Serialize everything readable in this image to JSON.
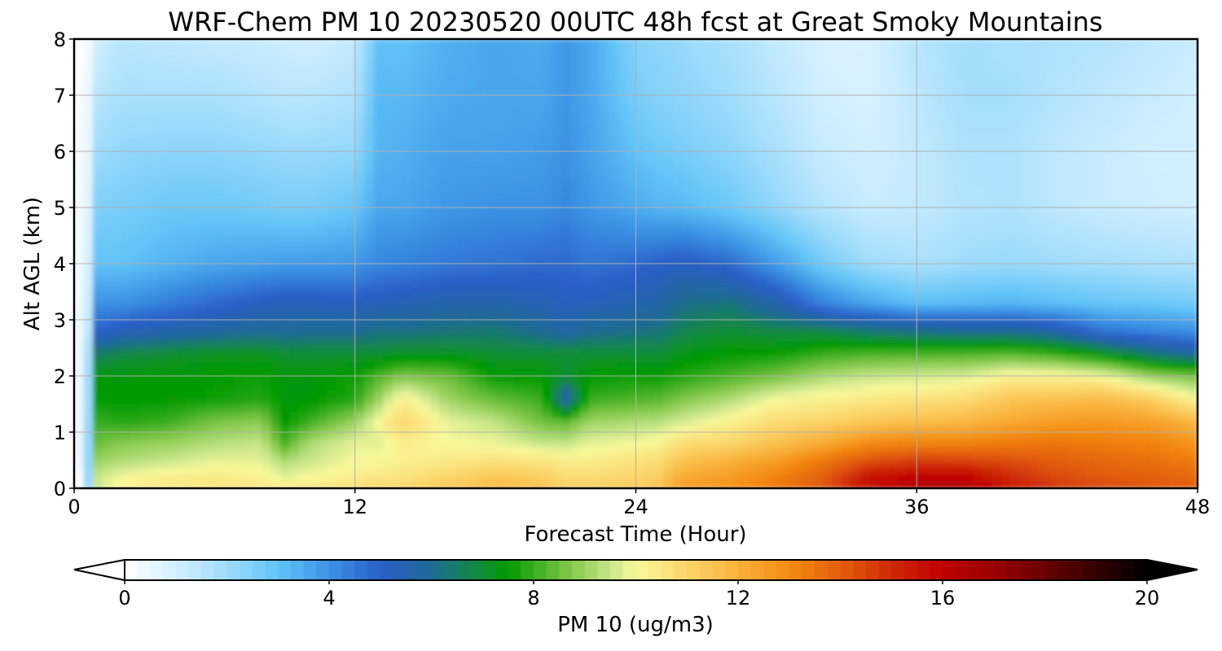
{
  "chart_data": {
    "type": "heatmap",
    "title": "WRF-Chem PM 10  20230520 00UTC 48h fcst at Great Smoky Mountains",
    "xlabel": "Forecast Time (Hour)",
    "ylabel": "Alt AGL (km)",
    "xlim": [
      0,
      48
    ],
    "ylim": [
      0,
      8
    ],
    "x_ticks": [
      "0",
      "12",
      "24",
      "36",
      "48"
    ],
    "y_ticks": [
      "0",
      "1",
      "2",
      "3",
      "4",
      "5",
      "6",
      "7",
      "8"
    ],
    "grid": true,
    "colorbar": {
      "label": "PM 10  (ug/m3)",
      "range": [
        0,
        20
      ],
      "ticks": [
        "0",
        "4",
        "8",
        "12",
        "16",
        "20"
      ],
      "extend": "both",
      "stops": [
        {
          "value": 0,
          "color": "#ffffff"
        },
        {
          "value": 1,
          "color": "#d2efff"
        },
        {
          "value": 2,
          "color": "#9fdcfb"
        },
        {
          "value": 3,
          "color": "#60c3f7"
        },
        {
          "value": 4,
          "color": "#3b92e4"
        },
        {
          "value": 5,
          "color": "#2a5fc8"
        },
        {
          "value": 6,
          "color": "#1f6a96"
        },
        {
          "value": 7,
          "color": "#108f35"
        },
        {
          "value": 7.5,
          "color": "#009a00"
        },
        {
          "value": 8.5,
          "color": "#6fbf3a"
        },
        {
          "value": 9.5,
          "color": "#c8e689"
        },
        {
          "value": 10,
          "color": "#f8f89a"
        },
        {
          "value": 11,
          "color": "#fbd56a"
        },
        {
          "value": 12,
          "color": "#f9b13a"
        },
        {
          "value": 13,
          "color": "#f38a12"
        },
        {
          "value": 14,
          "color": "#e35f0a"
        },
        {
          "value": 15,
          "color": "#cf2807"
        },
        {
          "value": 16,
          "color": "#c00000"
        },
        {
          "value": 17,
          "color": "#9a0000"
        },
        {
          "value": 18,
          "color": "#6a0000"
        },
        {
          "value": 19,
          "color": "#330000"
        },
        {
          "value": 20,
          "color": "#000000"
        }
      ]
    },
    "grid_time_hours": [
      0,
      0.5,
      1,
      2,
      4,
      6,
      8,
      9,
      10,
      12,
      13,
      14,
      16,
      18,
      20,
      21,
      22,
      24,
      25,
      26,
      28,
      30,
      32,
      34,
      36,
      38,
      40,
      42,
      44,
      46,
      48
    ],
    "grid_altitude_km": [
      0,
      0.2,
      0.5,
      0.8,
      1.2,
      1.6,
      2.0,
      2.4,
      2.8,
      3.3,
      4.0,
      5.0,
      6.0,
      7.0,
      8.0
    ],
    "values": [
      [
        0.0,
        0.0,
        0.5,
        0.5,
        0.3,
        0.3,
        0.3,
        0.3,
        0.3,
        0.3,
        0.2,
        0.2,
        0.2,
        0.1,
        0.0
      ],
      [
        0.3,
        0.3,
        0.5,
        0.6,
        0.6,
        0.6,
        0.6,
        0.6,
        0.5,
        0.5,
        0.4,
        0.3,
        0.2,
        0.2,
        0.1
      ],
      [
        9.5,
        9.5,
        9.0,
        8.5,
        8.0,
        7.5,
        7.5,
        6.5,
        5.0,
        4.0,
        3.0,
        2.5,
        2.0,
        1.5,
        1.0
      ],
      [
        10.2,
        10.0,
        9.2,
        8.8,
        7.8,
        7.5,
        7.4,
        6.8,
        5.3,
        4.0,
        3.0,
        2.6,
        2.2,
        1.8,
        1.5
      ],
      [
        10.5,
        10.3,
        9.5,
        9.0,
        8.0,
        7.5,
        7.5,
        7.0,
        5.6,
        4.4,
        3.3,
        2.8,
        2.3,
        1.8,
        1.4
      ],
      [
        10.6,
        10.4,
        9.8,
        9.3,
        8.6,
        7.6,
        7.5,
        7.2,
        5.8,
        4.8,
        3.6,
        2.8,
        2.3,
        1.8,
        1.3
      ],
      [
        10.5,
        10.2,
        9.8,
        9.5,
        8.8,
        7.8,
        7.6,
        7.2,
        6.0,
        5.2,
        3.7,
        2.7,
        2.2,
        1.6,
        1.2
      ],
      [
        10.4,
        9.8,
        9.2,
        8.2,
        7.5,
        7.4,
        7.4,
        7.0,
        5.9,
        5.3,
        3.8,
        2.6,
        2.1,
        1.5,
        1.1
      ],
      [
        10.6,
        10.0,
        9.5,
        9.2,
        8.0,
        7.4,
        7.4,
        7.0,
        6.0,
        5.3,
        3.8,
        2.6,
        2.1,
        1.5,
        1.0
      ],
      [
        10.8,
        10.3,
        10.0,
        9.8,
        9.0,
        7.8,
        7.6,
        7.0,
        6.0,
        5.2,
        3.9,
        2.9,
        2.2,
        1.7,
        1.3
      ],
      [
        11.0,
        10.5,
        10.0,
        9.8,
        10.0,
        9.0,
        8.2,
        7.0,
        6.2,
        5.3,
        4.2,
        3.6,
        3.3,
        3.2,
        3.0
      ],
      [
        11.0,
        10.6,
        10.2,
        10.3,
        11.0,
        10.3,
        8.7,
        7.2,
        6.2,
        5.4,
        4.3,
        3.6,
        3.4,
        3.2,
        3.0
      ],
      [
        11.4,
        11.0,
        10.4,
        10.0,
        9.8,
        9.0,
        8.5,
        7.2,
        6.3,
        5.6,
        4.5,
        3.9,
        3.7,
        3.5,
        3.4
      ],
      [
        11.8,
        11.4,
        10.6,
        9.9,
        9.4,
        8.4,
        7.5,
        7.0,
        6.4,
        5.6,
        4.6,
        4.0,
        3.7,
        3.6,
        3.6
      ],
      [
        11.6,
        11.2,
        10.5,
        9.5,
        8.5,
        8.0,
        7.5,
        7.0,
        6.0,
        5.4,
        4.8,
        4.0,
        3.8,
        3.6,
        3.5
      ],
      [
        11.2,
        10.8,
        10.3,
        9.5,
        8.3,
        5.5,
        7.0,
        7.0,
        5.7,
        5.2,
        4.8,
        4.2,
        4.0,
        3.9,
        3.9
      ],
      [
        11.2,
        10.8,
        10.3,
        9.8,
        9.0,
        8.0,
        7.5,
        7.0,
        6.0,
        5.3,
        4.6,
        3.9,
        3.7,
        3.6,
        3.6
      ],
      [
        11.3,
        11.0,
        10.6,
        10.0,
        9.2,
        8.2,
        7.6,
        7.0,
        6.2,
        5.5,
        4.8,
        3.5,
        3.0,
        2.6,
        2.4
      ],
      [
        11.6,
        11.2,
        10.8,
        10.2,
        9.3,
        8.3,
        7.6,
        7.0,
        6.3,
        5.7,
        5.0,
        3.3,
        2.8,
        2.4,
        2.3
      ],
      [
        12.6,
        12.2,
        11.5,
        10.8,
        9.6,
        8.7,
        7.8,
        7.3,
        6.7,
        6.1,
        5.2,
        3.2,
        2.6,
        2.3,
        2.1
      ],
      [
        12.8,
        12.5,
        12.0,
        11.0,
        10.2,
        9.2,
        8.2,
        7.5,
        7.0,
        6.3,
        4.8,
        2.8,
        2.3,
        2.0,
        1.8
      ],
      [
        13.4,
        13.2,
        12.5,
        11.6,
        10.8,
        10.0,
        8.6,
        7.6,
        6.8,
        5.6,
        3.8,
        2.2,
        1.8,
        1.5,
        1.3
      ],
      [
        14.2,
        14.0,
        13.4,
        12.2,
        11.0,
        10.2,
        9.2,
        8.0,
        6.8,
        4.3,
        2.7,
        1.6,
        1.2,
        1.0,
        0.9
      ],
      [
        15.8,
        15.5,
        14.3,
        13.0,
        11.4,
        10.4,
        9.5,
        8.2,
        6.4,
        3.6,
        2.0,
        1.2,
        1.0,
        0.9,
        0.9
      ],
      [
        16.3,
        16.0,
        14.6,
        13.2,
        11.6,
        10.6,
        9.6,
        8.2,
        6.2,
        3.1,
        1.8,
        1.3,
        1.3,
        1.4,
        1.5
      ],
      [
        16.4,
        16.0,
        14.5,
        13.2,
        11.8,
        10.8,
        9.7,
        8.2,
        6.0,
        3.2,
        2.0,
        1.6,
        1.7,
        1.9,
        1.9
      ],
      [
        15.6,
        15.0,
        14.3,
        13.4,
        12.2,
        11.4,
        10.2,
        8.3,
        6.0,
        3.3,
        2.1,
        1.7,
        1.7,
        1.9,
        1.8
      ],
      [
        14.8,
        14.4,
        14.0,
        13.5,
        12.5,
        11.6,
        10.2,
        8.0,
        5.6,
        3.1,
        2.0,
        1.4,
        1.4,
        1.6,
        1.7
      ],
      [
        14.4,
        14.1,
        13.8,
        13.3,
        12.6,
        11.7,
        10.0,
        7.3,
        4.6,
        2.9,
        1.9,
        1.2,
        1.2,
        1.4,
        1.6
      ],
      [
        14.2,
        14.0,
        13.6,
        13.2,
        12.4,
        11.2,
        9.0,
        6.4,
        4.3,
        2.8,
        1.8,
        1.1,
        1.0,
        1.2,
        1.4
      ],
      [
        14.0,
        13.8,
        13.3,
        12.7,
        11.8,
        10.0,
        8.6,
        5.8,
        4.0,
        2.7,
        1.7,
        1.0,
        1.0,
        1.0,
        1.2
      ]
    ]
  }
}
